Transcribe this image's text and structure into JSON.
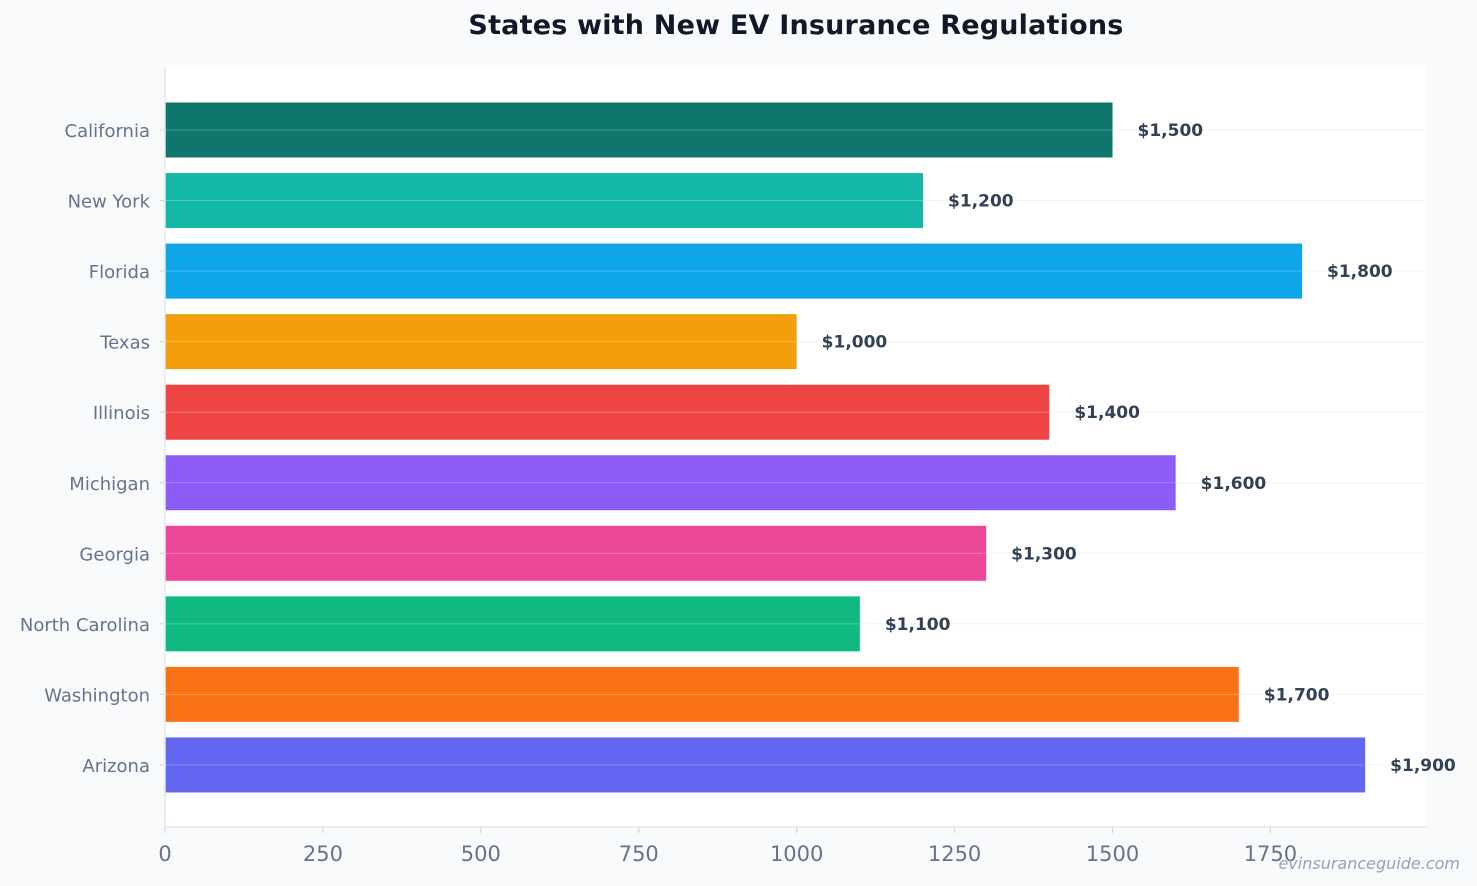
{
  "chart_data": {
    "type": "bar",
    "orientation": "horizontal",
    "title": "States with New EV Insurance Regulations",
    "categories": [
      "California",
      "New York",
      "Florida",
      "Texas",
      "Illinois",
      "Michigan",
      "Georgia",
      "North Carolina",
      "Washington",
      "Arizona"
    ],
    "values": [
      1500,
      1200,
      1800,
      1000,
      1400,
      1600,
      1300,
      1100,
      1700,
      1900
    ],
    "data_labels": [
      "$1,500",
      "$1,200",
      "$1,800",
      "$1,000",
      "$1,400",
      "$1,600",
      "$1,300",
      "$1,100",
      "$1,700",
      "$1,900"
    ],
    "colors": [
      "#0f766e",
      "#14b8a6",
      "#0ea5e9",
      "#f59e0b",
      "#ef4444",
      "#8b5cf6",
      "#ec4899",
      "#10b981",
      "#f97316",
      "#6366f1"
    ],
    "xticks": [
      "0",
      "250",
      "500",
      "750",
      "1000",
      "1250",
      "1500",
      "1750"
    ],
    "xlim": [
      0,
      1995
    ],
    "xlabel": "",
    "ylabel": "",
    "grid": true,
    "legend": "none"
  },
  "watermark": "evinsuranceguide.com"
}
